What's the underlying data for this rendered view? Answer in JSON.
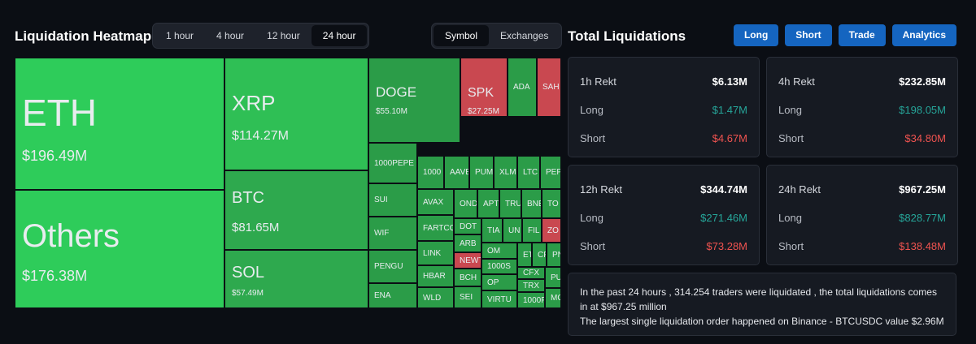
{
  "header": {
    "heatmap_title": "Liquidation Heatmap",
    "time_options": [
      "1 hour",
      "4 hour",
      "12 hour",
      "24 hour"
    ],
    "time_selected": "24 hour",
    "view_options": [
      "Symbol",
      "Exchanges"
    ],
    "view_selected": "Symbol",
    "totals_title": "Total Liquidations",
    "actions": [
      "Long",
      "Short",
      "Trade",
      "Analytics"
    ]
  },
  "colors": {
    "bright_green": "#2ecc5a",
    "green": "#2fb350",
    "mid_green": "#2b9c48",
    "dark_green": "#228a3e",
    "red": "#c94850",
    "accent_blue": "#1565c0",
    "long_color": "#26a69a",
    "short_color": "#ef5350"
  },
  "heatmap": [
    {
      "name": "ETH",
      "value": "$196.49M",
      "color": "#2ecc5a"
    },
    {
      "name": "Others",
      "value": "$176.38M",
      "color": "#2ecc5a"
    },
    {
      "name": "XRP",
      "value": "$114.27M",
      "color": "#2fbf55"
    },
    {
      "name": "BTC",
      "value": "$81.65M",
      "color": "#2ea94e"
    },
    {
      "name": "SOL",
      "value": "$57.49M",
      "color": "#2ea94e"
    },
    {
      "name": "DOGE",
      "value": "$55.10M",
      "color": "#2b9c48"
    },
    {
      "name": "SPK",
      "value": "$27.25M",
      "color": "#c94850"
    },
    {
      "name": "ADA",
      "color": "#2b9c48"
    },
    {
      "name": "SAH",
      "color": "#c94850"
    },
    {
      "name": "1000PEPE",
      "color": "#2b9c48"
    },
    {
      "name": "1000",
      "color": "#2b9c48"
    },
    {
      "name": "AAVE",
      "color": "#2b9c48"
    },
    {
      "name": "PUM",
      "color": "#2b9c48"
    },
    {
      "name": "XLM",
      "color": "#2b9c48"
    },
    {
      "name": "LTC",
      "color": "#2b9c48"
    },
    {
      "name": "PEP",
      "color": "#2b9c48"
    },
    {
      "name": "SUI",
      "color": "#2b9c48"
    },
    {
      "name": "AVAX",
      "color": "#2b9c48"
    },
    {
      "name": "OND",
      "color": "#2b9c48"
    },
    {
      "name": "APT",
      "color": "#2b9c48"
    },
    {
      "name": "TRU",
      "color": "#2b9c48"
    },
    {
      "name": "BNE",
      "color": "#2b9c48"
    },
    {
      "name": "TO",
      "color": "#2b9c48"
    },
    {
      "name": "WIF",
      "color": "#2b9c48"
    },
    {
      "name": "FARTCO",
      "color": "#2b9c48"
    },
    {
      "name": "DOT",
      "color": "#2b9c48"
    },
    {
      "name": "TIA",
      "color": "#2b9c48"
    },
    {
      "name": "UN",
      "color": "#2b9c48"
    },
    {
      "name": "FIL",
      "color": "#2b9c48"
    },
    {
      "name": "ZO",
      "color": "#c94850"
    },
    {
      "name": "ARB",
      "color": "#2b9c48"
    },
    {
      "name": "LINK",
      "color": "#2b9c48"
    },
    {
      "name": "OM",
      "color": "#2b9c48"
    },
    {
      "name": "ET",
      "color": "#2b9c48"
    },
    {
      "name": "CF",
      "color": "#2b9c48"
    },
    {
      "name": "PN",
      "color": "#2b9c48"
    },
    {
      "name": "PENGU",
      "color": "#2b9c48"
    },
    {
      "name": "NEWT",
      "color": "#c94850"
    },
    {
      "name": "1000S",
      "color": "#2b9c48"
    },
    {
      "name": "CFX",
      "color": "#2b9c48"
    },
    {
      "name": "PU",
      "color": "#2b9c48"
    },
    {
      "name": "HBAR",
      "color": "#2b9c48"
    },
    {
      "name": "BCH",
      "color": "#2b9c48"
    },
    {
      "name": "OP",
      "color": "#2b9c48"
    },
    {
      "name": "TRX",
      "color": "#2b9c48"
    },
    {
      "name": "ENA",
      "color": "#2b9c48"
    },
    {
      "name": "WLD",
      "color": "#2b9c48"
    },
    {
      "name": "SEI",
      "color": "#2b9c48"
    },
    {
      "name": "VIRTU",
      "color": "#2b9c48"
    },
    {
      "name": "1000F",
      "color": "#2b9c48"
    },
    {
      "name": "MO",
      "color": "#2b9c48"
    }
  ],
  "cards": [
    {
      "label": "1h Rekt",
      "total": "$6.13M",
      "long_label": "Long",
      "long": "$1.47M",
      "short_label": "Short",
      "short": "$4.67M"
    },
    {
      "label": "4h Rekt",
      "total": "$232.85M",
      "long_label": "Long",
      "long": "$198.05M",
      "short_label": "Short",
      "short": "$34.80M"
    },
    {
      "label": "12h Rekt",
      "total": "$344.74M",
      "long_label": "Long",
      "long": "$271.46M",
      "short_label": "Short",
      "short": "$73.28M"
    },
    {
      "label": "24h Rekt",
      "total": "$967.25M",
      "long_label": "Long",
      "long": "$828.77M",
      "short_label": "Short",
      "short": "$138.48M"
    }
  ],
  "summary": {
    "line1": "In the past 24 hours , 314.254 traders were liquidated , the total liquidations comes in at $967.25 million",
    "line2": "The largest single liquidation order happened on Binance - BTCUSDC value $2.96M"
  }
}
